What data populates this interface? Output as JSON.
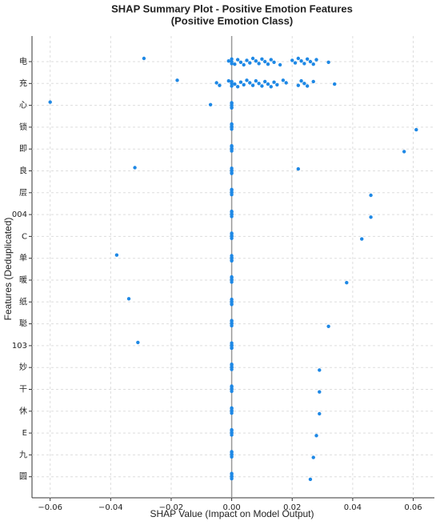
{
  "chart_data": {
    "type": "scatter",
    "title": "SHAP Summary Plot - Positive Emotion Features",
    "subtitle": "(Positive Emotion Class)",
    "x_label": "SHAP Value (Impact on Model Output)",
    "y_label": "Features (Deduplicated)",
    "color": "#1e88e5",
    "grid": true,
    "xlim": [
      -0.066,
      0.067
    ],
    "xticks": [
      {
        "value": -0.06,
        "label": "−0.06"
      },
      {
        "value": -0.04,
        "label": "−0.04"
      },
      {
        "value": -0.02,
        "label": "−0.02"
      },
      {
        "value": 0,
        "label": "0.00"
      },
      {
        "value": 0.02,
        "label": "0.02"
      },
      {
        "value": 0.04,
        "label": "0.04"
      },
      {
        "value": 0.06,
        "label": "0.06"
      }
    ],
    "categories": [
      "电",
      "充",
      "心",
      "锁",
      "即",
      "良",
      "层",
      "004",
      "C",
      "单",
      "暖",
      "纸",
      "聪",
      "103",
      "妙",
      "干",
      "休",
      "E",
      "九",
      "圆"
    ],
    "values": [
      [
        -0.029,
        -0.001,
        0,
        0,
        0,
        0.001,
        0.002,
        0.003,
        0.004,
        0.005,
        0.006,
        0.007,
        0.008,
        0.009,
        0.01,
        0.011,
        0.012,
        0.013,
        0.014,
        0.016,
        0.02,
        0.021,
        0.022,
        0.023,
        0.024,
        0.025,
        0.026,
        0.027,
        0.028,
        0.032
      ],
      [
        -0.018,
        -0.005,
        -0.004,
        -0.001,
        0,
        0,
        0,
        0.001,
        0.002,
        0.003,
        0.004,
        0.005,
        0.006,
        0.007,
        0.008,
        0.009,
        0.01,
        0.011,
        0.012,
        0.013,
        0.014,
        0.015,
        0.017,
        0.018,
        0.022,
        0.023,
        0.024,
        0.025,
        0.027,
        0.034
      ],
      [
        -0.06,
        -0.007,
        0,
        0,
        0,
        0,
        0
      ],
      [
        0,
        0,
        0,
        0,
        0,
        0.061
      ],
      [
        0,
        0,
        0,
        0,
        0,
        0.057
      ],
      [
        -0.032,
        0,
        0,
        0,
        0,
        0,
        0.022
      ],
      [
        0,
        0,
        0,
        0,
        0,
        0.046
      ],
      [
        0,
        0,
        0,
        0,
        0,
        0.046
      ],
      [
        0,
        0,
        0,
        0,
        0,
        0.043
      ],
      [
        -0.038,
        0,
        0,
        0,
        0,
        0
      ],
      [
        0,
        0,
        0,
        0,
        0,
        0.038
      ],
      [
        -0.034,
        0,
        0,
        0,
        0,
        0
      ],
      [
        0,
        0,
        0,
        0,
        0,
        0.032
      ],
      [
        -0.031,
        0,
        0,
        0,
        0,
        0
      ],
      [
        0,
        0,
        0,
        0,
        0,
        0.029
      ],
      [
        0,
        0,
        0,
        0,
        0,
        0.029
      ],
      [
        0,
        0,
        0,
        0,
        0,
        0.029
      ],
      [
        0,
        0,
        0,
        0,
        0,
        0.028
      ],
      [
        0,
        0,
        0,
        0,
        0,
        0.027
      ],
      [
        0,
        0,
        0,
        0,
        0,
        0.026
      ]
    ]
  }
}
